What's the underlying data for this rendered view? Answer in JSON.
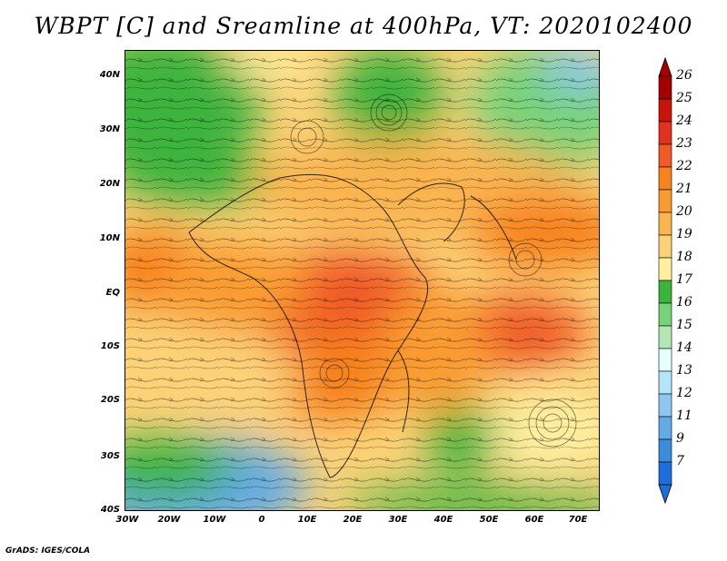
{
  "title": "WBPT [C] and Sreamline at 400hPa, VT: 2020102400",
  "footer": "GrADS: IGES/COLA",
  "map": {
    "y_labels": [
      "40N",
      "30N",
      "20N",
      "10N",
      "EQ",
      "10S",
      "20S",
      "30S",
      "40S"
    ],
    "x_labels": [
      "30W",
      "20W",
      "10W",
      "0",
      "10E",
      "20E",
      "30E",
      "40E",
      "50E",
      "60E",
      "70E"
    ]
  },
  "colorbar": {
    "labels": [
      "26",
      "25",
      "24",
      "23",
      "22",
      "21",
      "20",
      "19",
      "18",
      "17",
      "16",
      "15",
      "14",
      "13",
      "12",
      "11",
      "9",
      "7"
    ],
    "colors": [
      "#a50000",
      "#c8140a",
      "#e0321e",
      "#f05a28",
      "#f7821e",
      "#fa9b32",
      "#fab450",
      "#fcd278",
      "#fff0a0",
      "#3cb43c",
      "#78d278",
      "#b4e6b4",
      "#e6ffff",
      "#b4e6fa",
      "#8cc8f0",
      "#64aae6",
      "#3c8cdc",
      "#1e6edc"
    ]
  },
  "icons": {
    "up": "colorbar-up-arrow-icon",
    "down": "colorbar-down-arrow-icon"
  }
}
